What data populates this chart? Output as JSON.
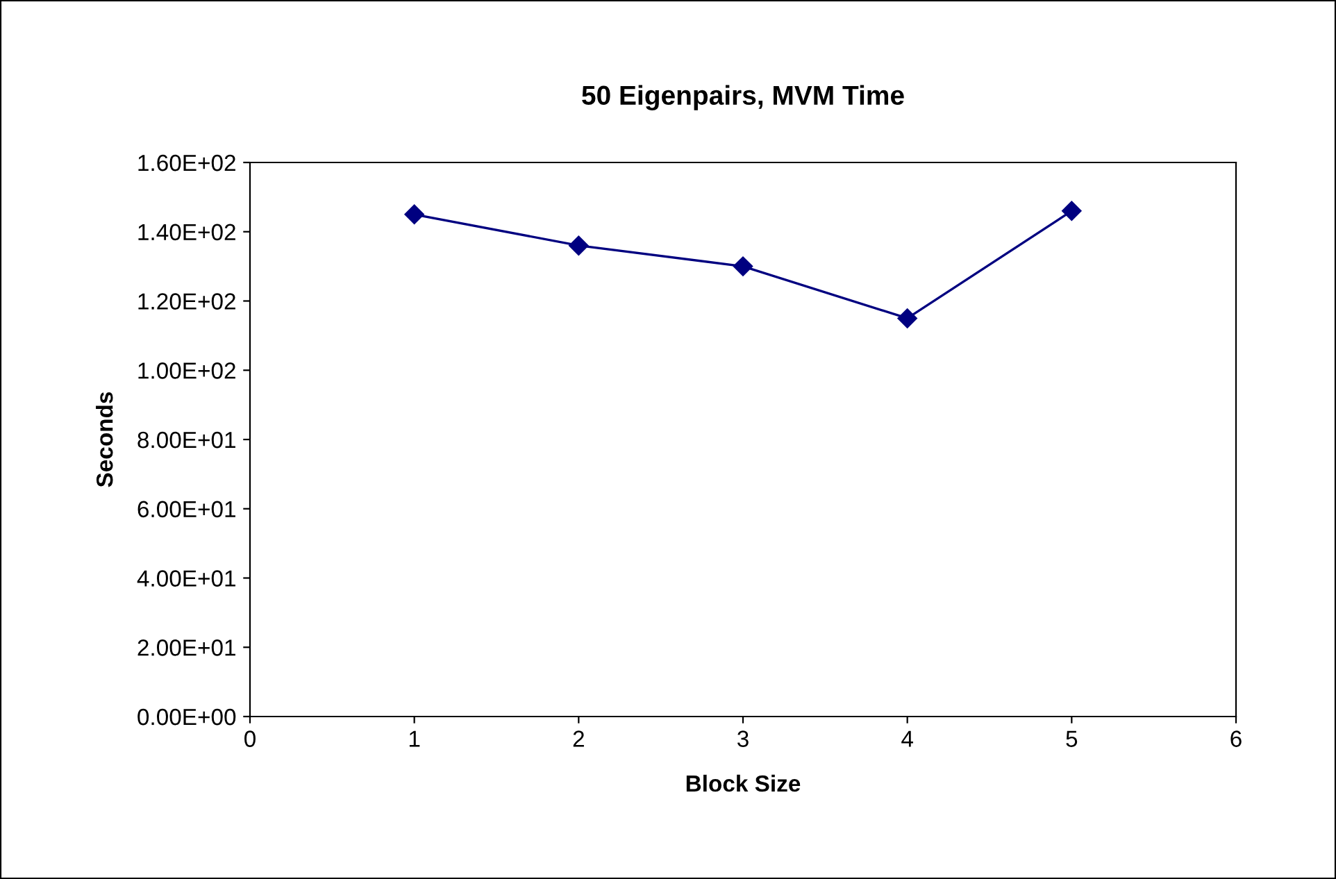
{
  "chart_data": {
    "type": "line",
    "title": "50 Eigenpairs, MVM Time",
    "xlabel": "Block Size",
    "ylabel": "Seconds",
    "x": [
      1,
      2,
      3,
      4,
      5
    ],
    "series": [
      {
        "color": "#000080",
        "values": [
          145,
          136,
          130,
          115,
          146
        ]
      }
    ],
    "xlim": [
      0,
      6
    ],
    "xticks": [
      0,
      1,
      2,
      3,
      4,
      5,
      6
    ],
    "ylim": [
      0,
      160
    ],
    "yticks": [
      {
        "value": 0,
        "label": "0.00E+00"
      },
      {
        "value": 20,
        "label": "2.00E+01"
      },
      {
        "value": 40,
        "label": "4.00E+01"
      },
      {
        "value": 60,
        "label": "6.00E+01"
      },
      {
        "value": 80,
        "label": "8.00E+01"
      },
      {
        "value": 100,
        "label": "1.00E+02"
      },
      {
        "value": 120,
        "label": "1.20E+02"
      },
      {
        "value": 140,
        "label": "1.40E+02"
      },
      {
        "value": 160,
        "label": "1.60E+02"
      }
    ],
    "grid": false,
    "legend": false,
    "marker": "diamond",
    "line_style": "solid"
  }
}
